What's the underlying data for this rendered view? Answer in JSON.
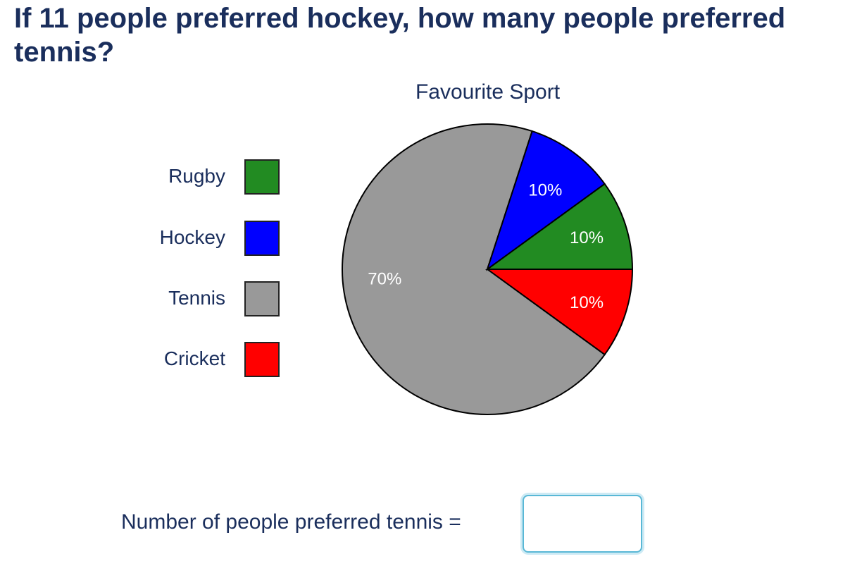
{
  "question": "If 11 people preferred hockey, how many people preferred tennis?",
  "answer": {
    "label": "Number of people preferred tennis =",
    "value": ""
  },
  "chart_data": {
    "type": "pie",
    "title": "Favourite Sport",
    "legend_position": "left",
    "slices": [
      {
        "name": "Rugby",
        "value": 10,
        "label": "10%",
        "color": "#228b22"
      },
      {
        "name": "Hockey",
        "value": 10,
        "label": "10%",
        "color": "#0000ff"
      },
      {
        "name": "Tennis",
        "value": 70,
        "label": "70%",
        "color": "#999999"
      },
      {
        "name": "Cricket",
        "value": 10,
        "label": "10%",
        "color": "#ff0000"
      }
    ]
  }
}
